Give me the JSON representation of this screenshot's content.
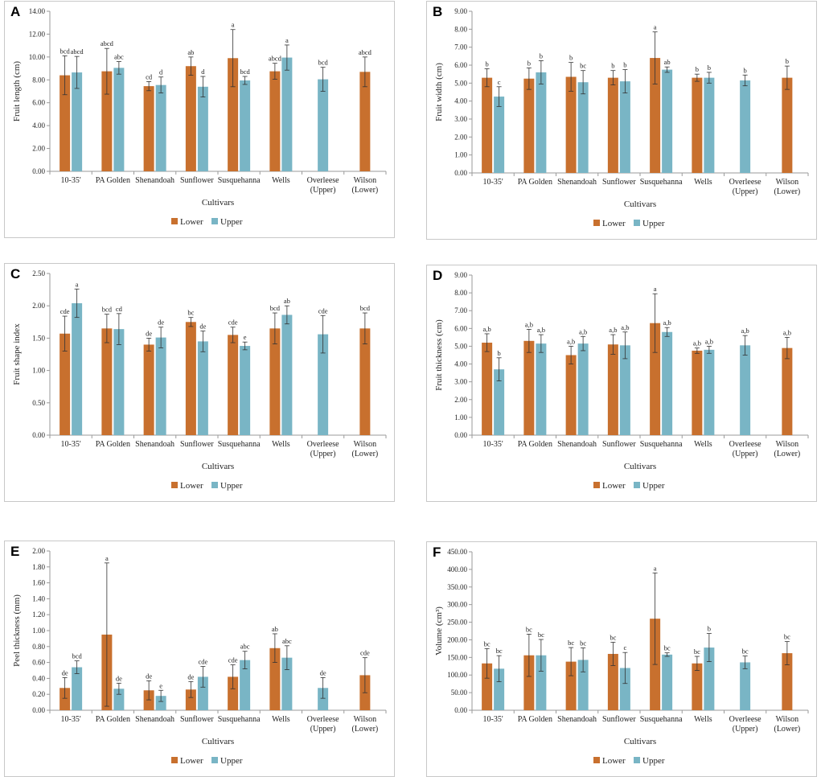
{
  "colors": {
    "lower": "#C8702E",
    "upper": "#79B5C5",
    "error": "#333333",
    "axis": "#9a9a9a"
  },
  "legend": {
    "lower": "Lower",
    "upper": "Upper"
  },
  "chart_data": [
    {
      "id": "A",
      "type": "bar",
      "panel_label": "A",
      "ylabel": "Fruit length (cm)",
      "xlabel": "Cultivars",
      "ylim": [
        0,
        14
      ],
      "ytick_step": 2,
      "ytick_decimals": 2,
      "categories": [
        "10-35'",
        "PA Golden",
        "Shenandoah",
        "Sunflower",
        "Susquehanna",
        "Wells",
        "Overleese\n(Upper)",
        "Wilson\n(Lower)"
      ],
      "series": [
        {
          "name": "Lower",
          "values": [
            8.4,
            8.75,
            7.45,
            9.2,
            9.9,
            8.75,
            null,
            8.7
          ],
          "errors": [
            1.7,
            2.0,
            0.4,
            0.8,
            2.5,
            0.7,
            null,
            1.3
          ],
          "labels": [
            "bcd",
            "abcd",
            "cd",
            "ab",
            "a",
            "abcd",
            null,
            "abcd"
          ]
        },
        {
          "name": "Upper",
          "values": [
            8.65,
            9.05,
            7.55,
            7.4,
            7.95,
            9.95,
            8.05,
            null
          ],
          "errors": [
            1.4,
            0.55,
            0.7,
            0.9,
            0.35,
            1.1,
            1.05,
            null
          ],
          "labels": [
            "abcd",
            "abc",
            "d",
            "d",
            "bcd",
            "a",
            "bcd",
            null
          ]
        }
      ]
    },
    {
      "id": "B",
      "type": "bar",
      "panel_label": "B",
      "ylabel": "Fruit width (cm)",
      "xlabel": "Cultivars",
      "ylim": [
        0,
        9
      ],
      "ytick_step": 1,
      "ytick_decimals": 2,
      "categories": [
        "10-35'",
        "PA Golden",
        "Shenandoah",
        "Sunflower",
        "Susquehanna",
        "Wells",
        "Overleese\n(Upper)",
        "Wilson\n(Lower)"
      ],
      "series": [
        {
          "name": "Lower",
          "values": [
            5.3,
            5.25,
            5.35,
            5.3,
            6.4,
            5.3,
            null,
            5.3
          ],
          "errors": [
            0.5,
            0.6,
            0.8,
            0.4,
            1.45,
            0.2,
            null,
            0.65
          ],
          "labels": [
            "b",
            "b",
            "b",
            "b",
            "a",
            "b",
            null,
            "b"
          ]
        },
        {
          "name": "Upper",
          "values": [
            4.25,
            5.6,
            5.05,
            5.1,
            5.75,
            5.3,
            5.15,
            null
          ],
          "errors": [
            0.55,
            0.65,
            0.65,
            0.65,
            0.15,
            0.3,
            0.3,
            null
          ],
          "labels": [
            "c",
            "b",
            "bc",
            "b",
            "ab",
            "b",
            "b",
            null
          ]
        }
      ]
    },
    {
      "id": "C",
      "type": "bar",
      "panel_label": "C",
      "ylabel": "Fruit shape index",
      "xlabel": "Cultivars",
      "ylim": [
        0,
        2.5
      ],
      "ytick_step": 0.5,
      "ytick_decimals": 2,
      "categories": [
        "10-35'",
        "PA Golden",
        "Shenandoah",
        "Sunflower",
        "Susquehanna",
        "Wells",
        "Overleese\n(Upper)",
        "Wilson\n(Lower)"
      ],
      "series": [
        {
          "name": "Lower",
          "values": [
            1.57,
            1.65,
            1.4,
            1.75,
            1.55,
            1.65,
            null,
            1.65
          ],
          "errors": [
            0.27,
            0.22,
            0.1,
            0.07,
            0.12,
            0.24,
            null,
            0.24
          ],
          "labels": [
            "cde",
            "bcd",
            "de",
            "bc",
            "cde",
            "bcd",
            null,
            "bcd"
          ]
        },
        {
          "name": "Upper",
          "values": [
            2.04,
            1.64,
            1.51,
            1.45,
            1.38,
            1.86,
            1.56,
            null
          ],
          "errors": [
            0.22,
            0.24,
            0.16,
            0.16,
            0.06,
            0.14,
            0.29,
            null
          ],
          "labels": [
            "a",
            "cd",
            "de",
            "de",
            "e",
            "ab",
            "cde",
            null
          ]
        }
      ]
    },
    {
      "id": "D",
      "type": "bar",
      "panel_label": "D",
      "ylabel": "Fruit thickness (cm)",
      "xlabel": "Cultivars",
      "ylim": [
        0,
        9
      ],
      "ytick_step": 1,
      "ytick_decimals": 2,
      "categories": [
        "10-35'",
        "PA Golden",
        "Shenandoah",
        "Sunflower",
        "Susquehanna",
        "Wells",
        "Overleese\n(Upper)",
        "Wilson\n(Lower)"
      ],
      "series": [
        {
          "name": "Lower",
          "values": [
            5.2,
            5.3,
            4.5,
            5.1,
            6.3,
            4.75,
            null,
            4.9
          ],
          "errors": [
            0.5,
            0.65,
            0.5,
            0.55,
            1.65,
            0.15,
            null,
            0.6
          ],
          "labels": [
            "a,b",
            "a,b",
            "a,b",
            "a,b",
            "a",
            "a,b",
            null,
            "a,b"
          ]
        },
        {
          "name": "Upper",
          "values": [
            3.7,
            5.15,
            5.15,
            5.05,
            5.8,
            4.8,
            5.05,
            null
          ],
          "errors": [
            0.65,
            0.5,
            0.4,
            0.75,
            0.25,
            0.2,
            0.55,
            null
          ],
          "labels": [
            "b",
            "a,b",
            "a,b",
            "a,b",
            "a,b",
            "a,b",
            "a,b",
            null
          ]
        }
      ]
    },
    {
      "id": "E",
      "type": "bar",
      "panel_label": "E",
      "ylabel": "Peel thickness (mm)",
      "xlabel": "Cultivars",
      "ylim": [
        0,
        2
      ],
      "ytick_step": 0.2,
      "ytick_decimals": 2,
      "categories": [
        "10-35'",
        "PA Golden",
        "Shenandoah",
        "Sunflower",
        "Susquehanna",
        "Wells",
        "Overleese\n(Upper)",
        "Wilson\n(Lower)"
      ],
      "series": [
        {
          "name": "Lower",
          "values": [
            0.28,
            0.95,
            0.25,
            0.26,
            0.42,
            0.78,
            null,
            0.44
          ],
          "errors": [
            0.13,
            0.9,
            0.12,
            0.1,
            0.15,
            0.18,
            null,
            0.22
          ],
          "labels": [
            "de",
            "a",
            "de",
            "de",
            "cde",
            "ab",
            null,
            "cde"
          ]
        },
        {
          "name": "Upper",
          "values": [
            0.54,
            0.27,
            0.18,
            0.42,
            0.63,
            0.66,
            0.28,
            null
          ],
          "errors": [
            0.08,
            0.07,
            0.07,
            0.13,
            0.11,
            0.15,
            0.13,
            null
          ],
          "labels": [
            "bcd",
            "de",
            "e",
            "cde",
            "abc",
            "abc",
            "de",
            null
          ]
        }
      ]
    },
    {
      "id": "F",
      "type": "bar",
      "panel_label": "F",
      "ylabel": "Volume (cm³)",
      "xlabel": "Cultivars",
      "ylim": [
        0,
        450
      ],
      "ytick_step": 50,
      "ytick_decimals": 2,
      "categories": [
        "10-35'",
        "PA Golden",
        "Shenandoah",
        "Sunflower",
        "Susquehanna",
        "Wells",
        "Overleese\n(Upper)",
        "Wilson\n(Lower)"
      ],
      "series": [
        {
          "name": "Lower",
          "values": [
            133,
            156,
            138,
            160,
            260,
            133,
            null,
            162
          ],
          "errors": [
            42,
            60,
            40,
            33,
            130,
            20,
            null,
            33
          ],
          "labels": [
            "bc",
            "bc",
            "bc",
            "bc",
            "a",
            "bc",
            null,
            "bc"
          ]
        },
        {
          "name": "Upper",
          "values": [
            118,
            156,
            143,
            120,
            158,
            178,
            136,
            null
          ],
          "errors": [
            37,
            45,
            34,
            44,
            5,
            40,
            18,
            null
          ],
          "labels": [
            "bc",
            "bc",
            "bc",
            "c",
            "bc",
            "b",
            "bc",
            null
          ]
        }
      ]
    }
  ]
}
